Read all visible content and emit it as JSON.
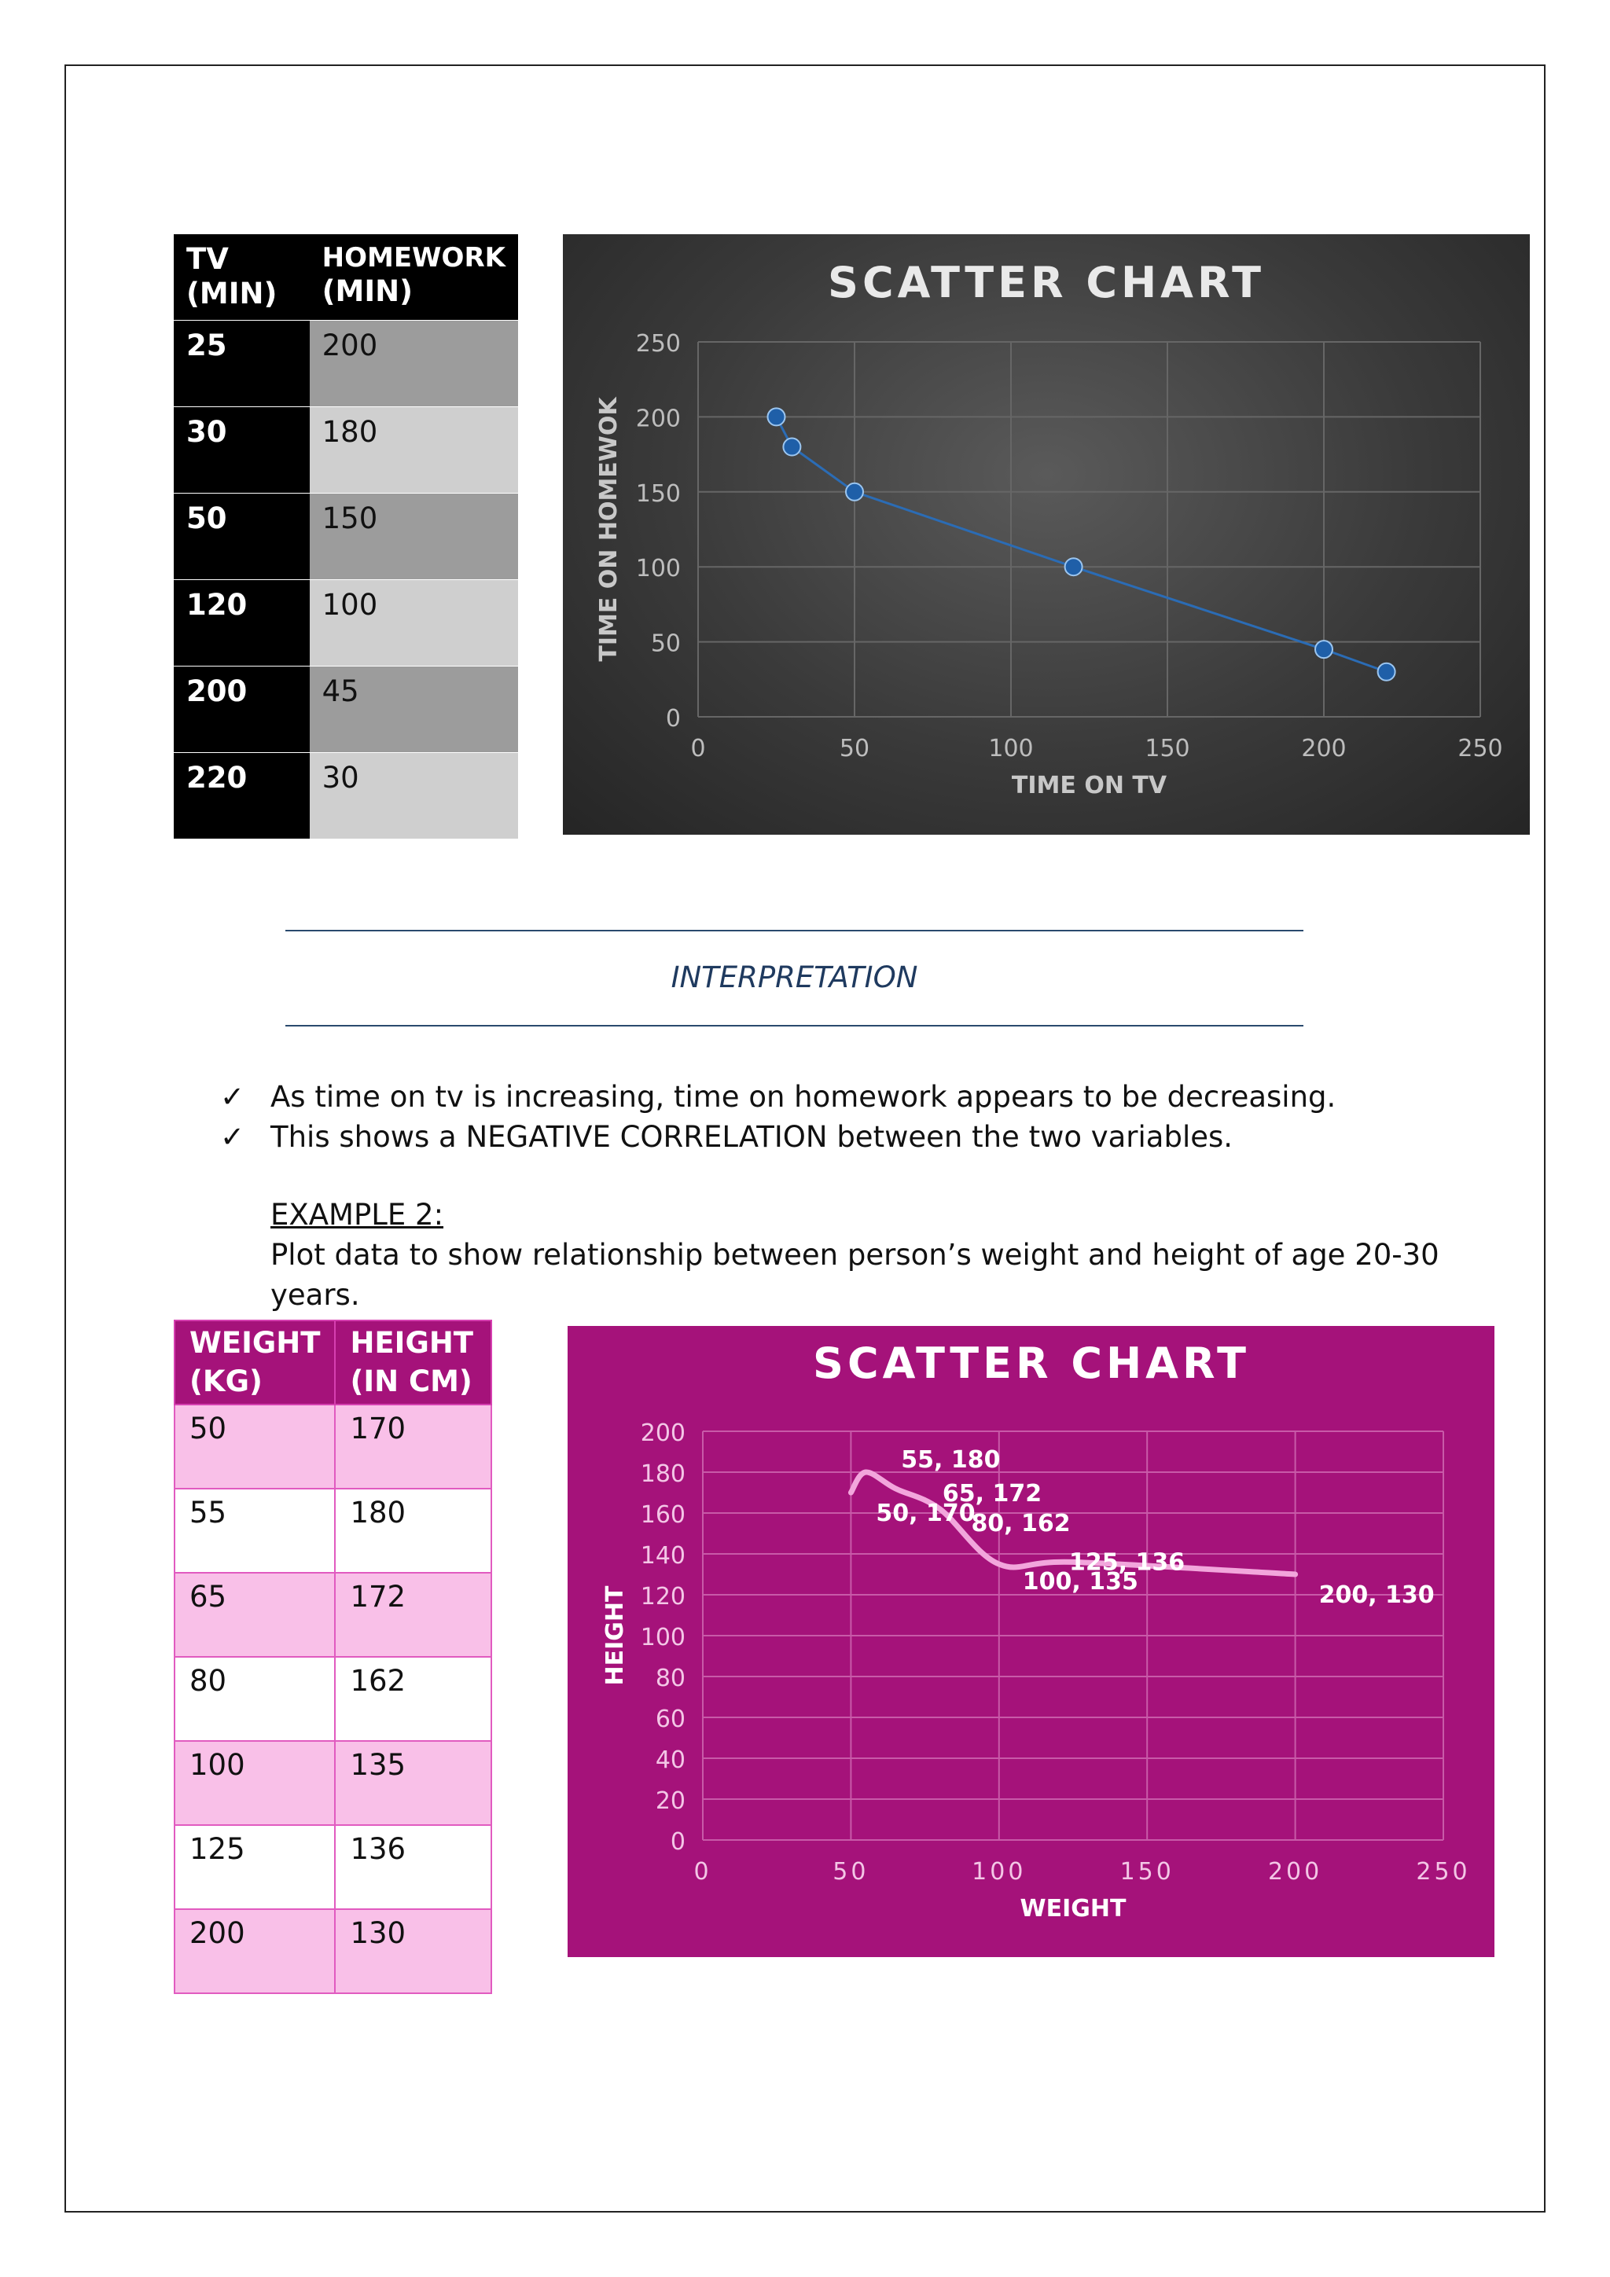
{
  "table1": {
    "header": {
      "col1_line1": "TV",
      "col1_line2": "(MIN)",
      "col2_line1": "HOMEWORK",
      "col2_line2": "(MIN)"
    },
    "rows": [
      {
        "tv": "25",
        "homework": "200"
      },
      {
        "tv": "30",
        "homework": "180"
      },
      {
        "tv": "50",
        "homework": "150"
      },
      {
        "tv": "120",
        "homework": "100"
      },
      {
        "tv": "200",
        "homework": "45"
      },
      {
        "tv": "220",
        "homework": "30"
      }
    ]
  },
  "chart_data": [
    {
      "type": "scatter",
      "title": "SCATTER CHART",
      "xlabel": "TIME ON TV",
      "ylabel": "TIME ON HOMEWOK",
      "x": [
        25,
        30,
        50,
        120,
        200,
        220
      ],
      "y": [
        200,
        180,
        150,
        100,
        45,
        30
      ],
      "xlim": [
        0,
        250
      ],
      "ylim": [
        0,
        250
      ],
      "xticks": [
        "0",
        "50",
        "100",
        "150",
        "200",
        "250"
      ],
      "yticks": [
        "0",
        "50",
        "100",
        "150",
        "200",
        "250"
      ],
      "grid": true,
      "colors": {
        "background": "#3a3a3a",
        "marker": "#1f5fa8",
        "line": "#2b6cb5"
      }
    },
    {
      "type": "scatter",
      "title": "SCATTER CHART",
      "xlabel": "WEIGHT",
      "ylabel": "HEIGHT",
      "x": [
        50,
        55,
        65,
        80,
        100,
        125,
        200
      ],
      "y": [
        170,
        180,
        172,
        162,
        135,
        136,
        130
      ],
      "point_labels": [
        "50, 170",
        "55, 180",
        "65, 172",
        "80, 162",
        "100, 135",
        "125, 136",
        "200, 130"
      ],
      "xlim": [
        0,
        250
      ],
      "ylim": [
        0,
        200
      ],
      "xticks": [
        "0",
        "50",
        "100",
        "150",
        "200",
        "250"
      ],
      "yticks": [
        "0",
        "20",
        "40",
        "60",
        "80",
        "100",
        "120",
        "140",
        "160",
        "180",
        "200"
      ],
      "grid": true,
      "colors": {
        "background": "#a5127a",
        "line": "#f2a6dc"
      }
    }
  ],
  "interpretation": {
    "heading": "INTERPRETATION",
    "bullets": [
      "As time on tv is increasing, time on homework appears to be decreasing.",
      "This shows a NEGATIVE CORRELATION between the two variables."
    ],
    "check_glyph": "✓"
  },
  "example2": {
    "label": "EXAMPLE 2:",
    "text": "Plot data to show relationship between person’s weight and height of age 20-30 years."
  },
  "table2": {
    "header": {
      "col1_line1": "WEIGHT",
      "col1_line2": "(KG)",
      "col2_line1": "HEIGHT",
      "col2_line2": "(IN CM)"
    },
    "rows": [
      {
        "weight": "50",
        "height": "170"
      },
      {
        "weight": "55",
        "height": "180"
      },
      {
        "weight": "65",
        "height": "172"
      },
      {
        "weight": "80",
        "height": "162"
      },
      {
        "weight": "100",
        "height": "135"
      },
      {
        "weight": "125",
        "height": "136"
      },
      {
        "weight": "200",
        "height": "130"
      }
    ]
  }
}
